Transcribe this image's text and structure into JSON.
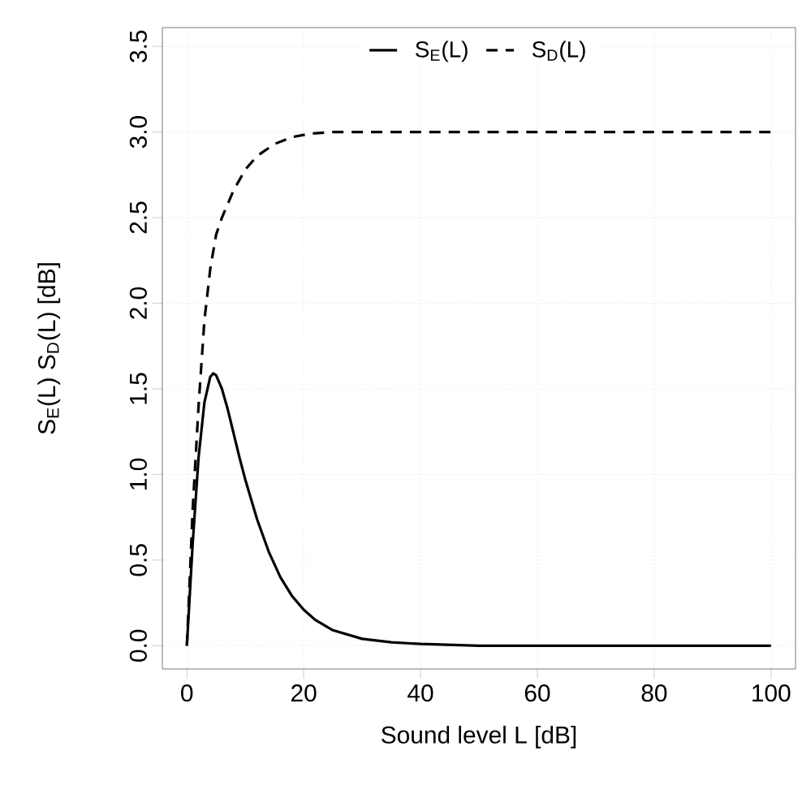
{
  "chart_data": {
    "type": "line",
    "xlabel": "Sound level L [dB]",
    "ylabel": "S$_{E}$(L)  S$_{D}$(L)  [dB]",
    "xlim": [
      -4.2,
      104.2
    ],
    "ylim": [
      -0.136,
      3.61
    ],
    "xticks": [
      0,
      20,
      40,
      60,
      80,
      100
    ],
    "yticks": [
      {
        "value": 0,
        "label": "0.0"
      },
      {
        "value": 0.5,
        "label": "0.5"
      },
      {
        "value": 1,
        "label": "1.0"
      },
      {
        "value": 1.5,
        "label": "1.5"
      },
      {
        "value": 2,
        "label": "2.0"
      },
      {
        "value": 2.5,
        "label": "2.5"
      },
      {
        "value": 3,
        "label": "3.0"
      },
      {
        "value": 3.5,
        "label": "3.5"
      }
    ],
    "grid": true,
    "legend": "top",
    "series": [
      {
        "name": "S$_{E}$(L)",
        "color": "#000000",
        "line_style": "solid",
        "x": [
          0,
          0.5,
          1,
          2,
          3,
          4,
          4.5,
          5,
          6,
          7,
          8,
          9,
          10,
          12,
          14,
          16,
          18,
          20,
          22,
          25,
          30,
          35,
          40,
          50,
          60,
          80,
          100
        ],
        "values": [
          0,
          0.3,
          0.6,
          1.1,
          1.42,
          1.57,
          1.59,
          1.58,
          1.5,
          1.38,
          1.24,
          1.1,
          0.97,
          0.74,
          0.55,
          0.4,
          0.29,
          0.21,
          0.15,
          0.09,
          0.04,
          0.02,
          0.01,
          0,
          0,
          0,
          0
        ]
      },
      {
        "name": "S$_{D}$(L)",
        "color": "#000000",
        "line_style": "dashed",
        "x": [
          0,
          0.5,
          1,
          2,
          3,
          4,
          5,
          6,
          8,
          10,
          12,
          15,
          18,
          21,
          25,
          30,
          40,
          60,
          80,
          100
        ],
        "values": [
          0,
          0.4,
          0.8,
          1.4,
          1.9,
          2.2,
          2.4,
          2.5,
          2.66,
          2.78,
          2.86,
          2.93,
          2.97,
          2.99,
          3.0,
          3.0,
          3.0,
          3.0,
          3.0,
          3.0
        ]
      }
    ]
  }
}
